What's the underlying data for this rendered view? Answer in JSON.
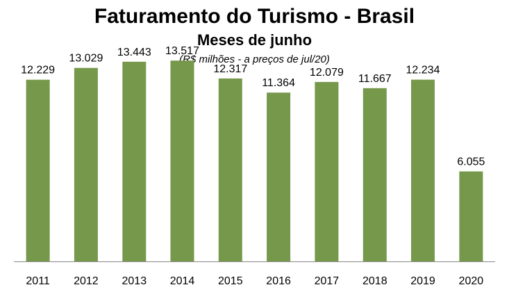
{
  "chart_data": {
    "type": "bar",
    "title": "Faturamento do Turismo - Brasil",
    "subtitle": "Meses de junho",
    "note": "(R$ milhões - a preços de jul/20)",
    "categories": [
      "2011",
      "2012",
      "2013",
      "2014",
      "2015",
      "2016",
      "2017",
      "2018",
      "2019",
      "2020"
    ],
    "values": [
      12229,
      13029,
      13443,
      13517,
      12317,
      11364,
      12079,
      11667,
      12234,
      6055
    ],
    "value_labels": [
      "12.229",
      "13.029",
      "13.443",
      "13.517",
      "12.317",
      "11.364",
      "12.079",
      "11.667",
      "12.234",
      "6.055"
    ],
    "ylim": [
      0,
      17600
    ],
    "grid": false,
    "legend": "none",
    "bar_color": "#76984A",
    "axis_color": "#888888"
  }
}
